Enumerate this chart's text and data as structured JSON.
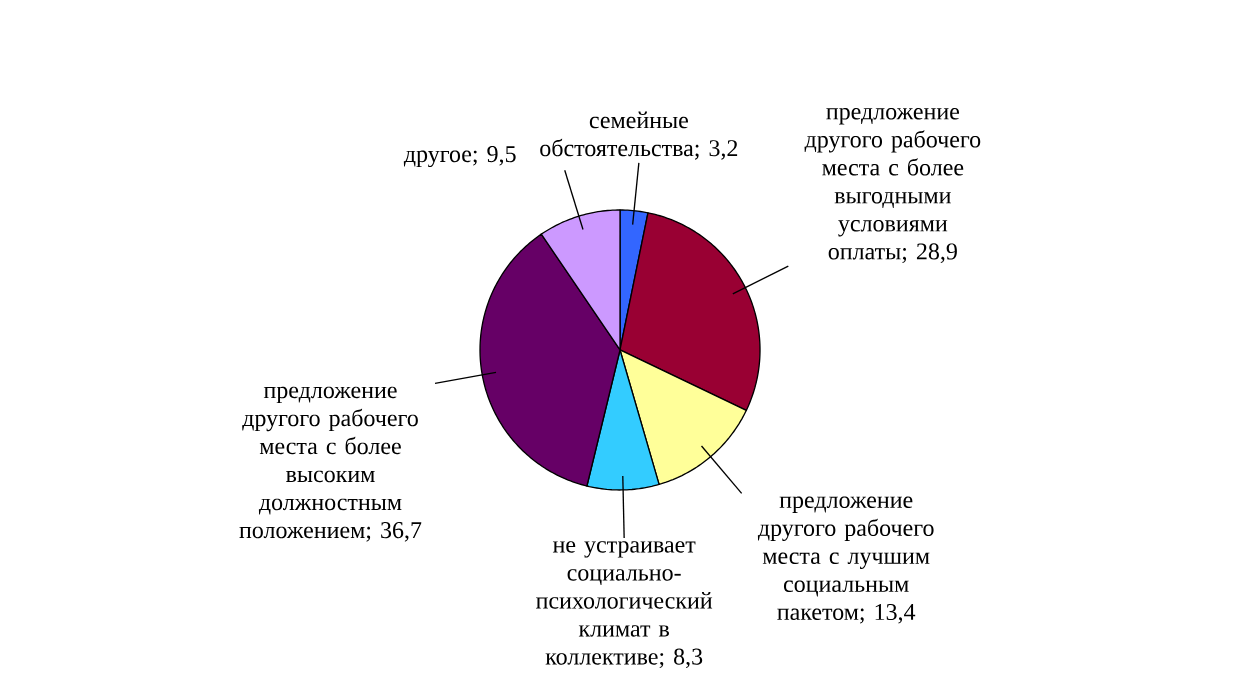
{
  "chart_data": {
    "type": "pie",
    "categories": [
      "семейные обстоятельства",
      "предложение другого рабочего места с более выгодными условиями оплаты",
      "предложение другого рабочего места с лучшим социальным пакетом",
      "не устраивает социально-психологический климат в коллективе",
      "предложение другого рабочего места с более высоким должностным положением",
      "другое"
    ],
    "values": [
      3.2,
      28.9,
      13.4,
      8.3,
      36.7,
      9.5
    ],
    "value_labels": [
      "; 3,2",
      "; 28,9",
      "; 13,4",
      "; 8,3",
      "; 36,7",
      "; 9,5"
    ],
    "colors": [
      "#3366ff",
      "#990033",
      "#ffff99",
      "#33ccff",
      "#660066",
      "#cc99ff"
    ]
  }
}
